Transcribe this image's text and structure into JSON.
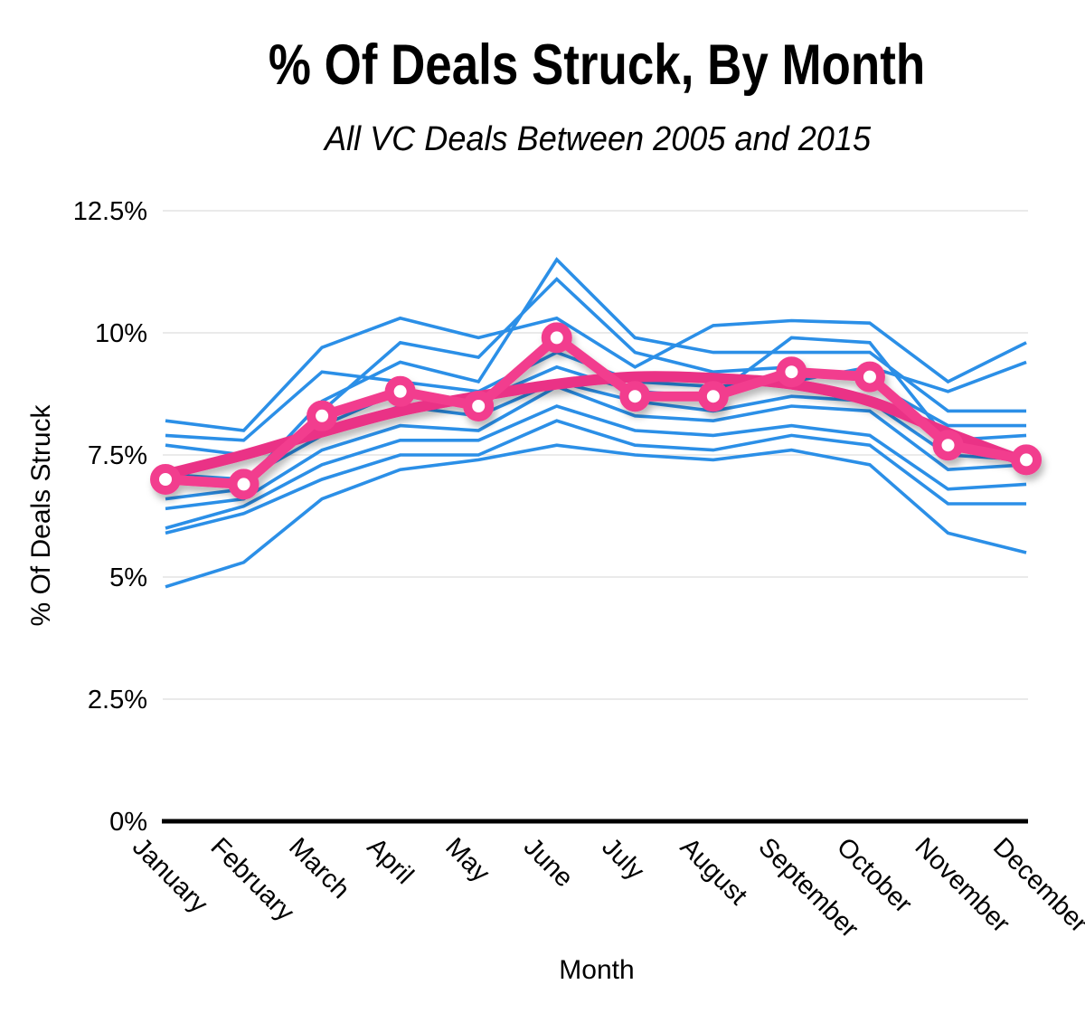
{
  "chart_data": {
    "type": "line",
    "title": "% Of Deals Struck, By Month",
    "subtitle": "All VC Deals Between 2005 and 2015",
    "xlabel": "Month",
    "ylabel": "% Of Deals Struck",
    "categories": [
      "January",
      "February",
      "March",
      "April",
      "May",
      "June",
      "July",
      "August",
      "September",
      "October",
      "November",
      "December"
    ],
    "y_ticks": [
      "12.5%",
      "10%",
      "7.5%",
      "5%",
      "2.5%",
      "0%"
    ],
    "y_tick_values": [
      12.5,
      10,
      7.5,
      5,
      2.5,
      0
    ],
    "ylim": [
      0,
      12.5
    ],
    "grid": true,
    "legend": "none",
    "colors": {
      "year_lines": "#2B8FE7",
      "average_line": "#F23D8E",
      "trend_line": "#EA3186",
      "marker_fill": "#FFFFFF",
      "gridline": "#DEDEDE",
      "axis": "#000000",
      "background": "#FFFFFF"
    },
    "average_series": {
      "name": "monthly-average-line",
      "values": [
        7.0,
        6.9,
        8.3,
        8.8,
        8.5,
        9.9,
        8.7,
        8.7,
        9.2,
        9.1,
        7.7,
        7.4
      ]
    },
    "trend_series": {
      "name": "smoothed-trend-curve",
      "values": [
        7.1,
        7.5,
        7.97,
        8.4,
        8.7,
        8.95,
        9.1,
        9.07,
        8.95,
        8.6,
        7.95,
        7.35
      ]
    },
    "series": [
      {
        "name": "year-line-1",
        "values": [
          7.0,
          6.9,
          8.6,
          9.4,
          9.0,
          11.5,
          9.9,
          9.6,
          9.6,
          9.6,
          8.4,
          8.4
        ]
      },
      {
        "name": "year-line-2",
        "values": [
          6.6,
          6.8,
          8.4,
          9.8,
          9.5,
          11.1,
          9.6,
          9.2,
          9.3,
          9.0,
          8.1,
          8.1
        ]
      },
      {
        "name": "year-line-3",
        "values": [
          8.2,
          8.0,
          9.7,
          10.3,
          9.9,
          10.3,
          9.3,
          10.15,
          10.25,
          10.2,
          9.0,
          9.8
        ]
      },
      {
        "name": "year-line-4",
        "values": [
          7.9,
          7.8,
          9.2,
          9.0,
          8.8,
          9.6,
          9.0,
          8.9,
          9.0,
          9.3,
          8.8,
          9.4
        ]
      },
      {
        "name": "year-line-5",
        "values": [
          7.7,
          7.5,
          8.1,
          8.8,
          8.6,
          9.3,
          8.8,
          8.7,
          9.9,
          9.8,
          7.8,
          7.9
        ]
      },
      {
        "name": "year-line-6",
        "values": [
          7.1,
          7.0,
          7.9,
          8.5,
          8.3,
          9.0,
          8.6,
          8.4,
          8.7,
          8.6,
          7.5,
          7.4
        ]
      },
      {
        "name": "year-line-7",
        "values": [
          6.4,
          6.6,
          7.6,
          8.1,
          8.0,
          8.9,
          8.3,
          8.2,
          8.5,
          8.4,
          7.2,
          7.3
        ]
      },
      {
        "name": "year-line-8",
        "values": [
          6.0,
          6.45,
          7.3,
          7.8,
          7.8,
          8.5,
          8.0,
          7.9,
          8.1,
          7.9,
          6.8,
          6.9
        ]
      },
      {
        "name": "year-line-9",
        "values": [
          5.9,
          6.3,
          7.0,
          7.5,
          7.5,
          8.2,
          7.7,
          7.6,
          7.9,
          7.7,
          6.5,
          6.5
        ]
      },
      {
        "name": "year-line-10",
        "values": [
          4.8,
          5.3,
          6.6,
          7.2,
          7.4,
          7.7,
          7.5,
          7.4,
          7.6,
          7.3,
          5.9,
          5.5
        ]
      }
    ]
  }
}
